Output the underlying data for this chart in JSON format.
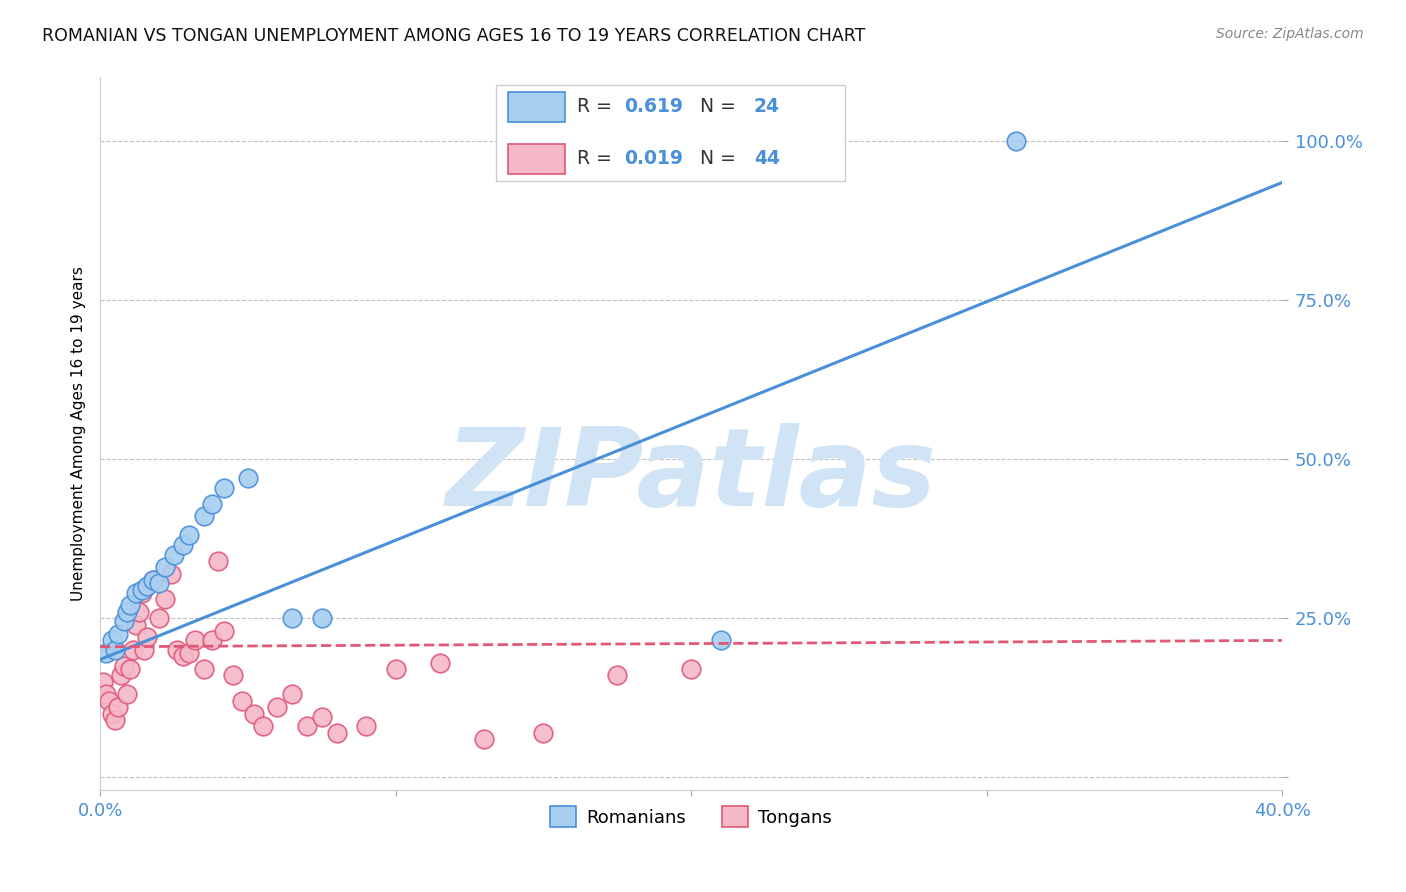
{
  "title": "ROMANIAN VS TONGAN UNEMPLOYMENT AMONG AGES 16 TO 19 YEARS CORRELATION CHART",
  "source": "Source: ZipAtlas.com",
  "ylabel": "Unemployment Among Ages 16 to 19 years",
  "xlim": [
    0.0,
    0.4
  ],
  "ylim": [
    -0.02,
    1.1
  ],
  "romanian_R": 0.619,
  "romanian_N": 24,
  "tongan_R": 0.019,
  "tongan_N": 44,
  "romanian_color": "#A8CEF0",
  "tongan_color": "#F5B8C8",
  "romanian_line_color": "#4A90D9",
  "tongan_line_color": "#E05878",
  "watermark": "ZIPatlas",
  "watermark_color": "#D0E4F5",
  "background_color": "#FFFFFF",
  "grid_color": "#CCCCCC",
  "romanian_x": [
    0.002,
    0.004,
    0.005,
    0.006,
    0.008,
    0.009,
    0.01,
    0.012,
    0.014,
    0.016,
    0.018,
    0.02,
    0.022,
    0.025,
    0.028,
    0.03,
    0.035,
    0.038,
    0.042,
    0.05,
    0.065,
    0.075,
    0.21,
    0.31
  ],
  "romanian_y": [
    0.195,
    0.215,
    0.2,
    0.225,
    0.245,
    0.26,
    0.27,
    0.29,
    0.295,
    0.3,
    0.31,
    0.305,
    0.33,
    0.35,
    0.365,
    0.38,
    0.41,
    0.43,
    0.455,
    0.47,
    0.25,
    0.25,
    0.215,
    1.0
  ],
  "tongan_x": [
    0.001,
    0.002,
    0.003,
    0.004,
    0.005,
    0.006,
    0.007,
    0.008,
    0.009,
    0.01,
    0.011,
    0.012,
    0.013,
    0.014,
    0.015,
    0.016,
    0.018,
    0.02,
    0.022,
    0.024,
    0.026,
    0.028,
    0.03,
    0.032,
    0.035,
    0.038,
    0.04,
    0.042,
    0.045,
    0.048,
    0.052,
    0.055,
    0.06,
    0.065,
    0.07,
    0.075,
    0.08,
    0.09,
    0.1,
    0.115,
    0.13,
    0.15,
    0.175,
    0.2
  ],
  "tongan_y": [
    0.15,
    0.13,
    0.12,
    0.1,
    0.09,
    0.11,
    0.16,
    0.175,
    0.13,
    0.17,
    0.2,
    0.24,
    0.26,
    0.29,
    0.2,
    0.22,
    0.31,
    0.25,
    0.28,
    0.32,
    0.2,
    0.19,
    0.195,
    0.215,
    0.17,
    0.215,
    0.34,
    0.23,
    0.16,
    0.12,
    0.1,
    0.08,
    0.11,
    0.13,
    0.08,
    0.095,
    0.07,
    0.08,
    0.17,
    0.18,
    0.06,
    0.07,
    0.16,
    0.17
  ],
  "rom_trend_x": [
    0.0,
    0.4
  ],
  "rom_trend_y": [
    0.185,
    0.935
  ],
  "ton_trend_x": [
    0.0,
    0.4
  ],
  "ton_trend_y": [
    0.205,
    0.215
  ]
}
